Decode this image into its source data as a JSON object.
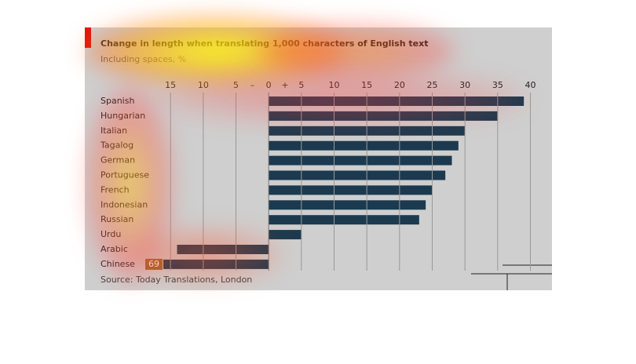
{
  "chart_data": {
    "type": "hbar",
    "title": "Change in length when translating 1,000 characters of English text",
    "subtitle": "Including spaces, %",
    "source": "Source: Today Translations, London",
    "categories": [
      "Spanish",
      "Hungarian",
      "Italian",
      "Tagalog",
      "German",
      "Portuguese",
      "French",
      "Indonesian",
      "Russian",
      "Urdu",
      "Arabic",
      "Chinese"
    ],
    "values": [
      39,
      35,
      30,
      29,
      28,
      27,
      25,
      24,
      23,
      5,
      -14,
      -69
    ],
    "value_labels": [
      null,
      null,
      null,
      null,
      null,
      null,
      null,
      null,
      null,
      null,
      null,
      "69"
    ],
    "color": "#1c3a4f",
    "xlim": [
      -28.1,
      43.3
    ],
    "xticks": [
      {
        "value": -15,
        "label": "15"
      },
      {
        "value": -10,
        "label": "10"
      },
      {
        "value": -5,
        "label": "5"
      },
      0,
      5,
      10,
      15,
      20,
      25,
      30,
      35,
      40
    ],
    "axis_signs": [
      "–",
      "+"
    ],
    "grid": true
  }
}
